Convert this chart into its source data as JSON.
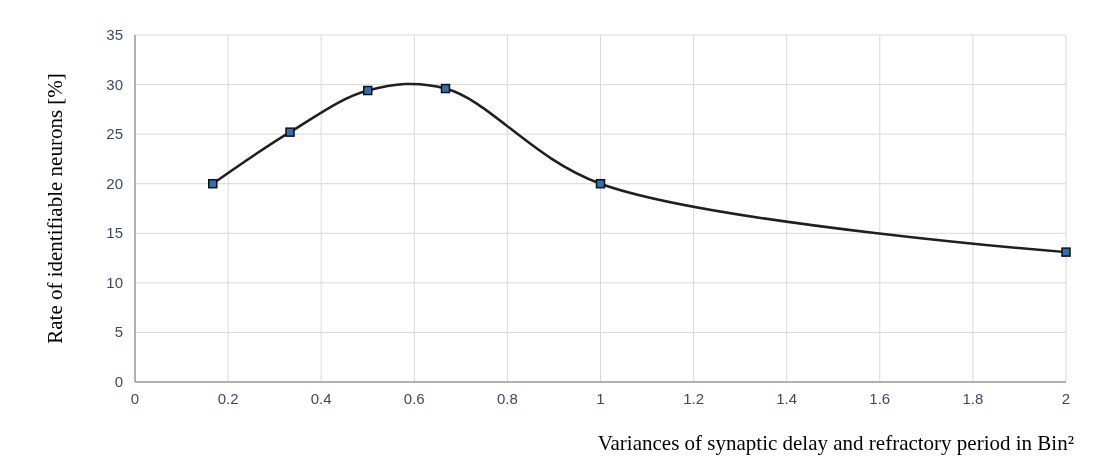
{
  "chart_data": {
    "type": "line",
    "xlabel": "Variances of synaptic delay and refractory period in Bin²",
    "ylabel": "Rate of identifiable neurons [%]",
    "x": [
      0.167,
      0.333,
      0.5,
      0.667,
      1,
      2
    ],
    "series": [
      {
        "color": "#1f1f1f",
        "values": [
          20,
          25.2,
          29.4,
          29.6,
          20,
          13.1
        ]
      }
    ],
    "xlim": [
      0,
      2
    ],
    "xticks": [
      0,
      0.2,
      0.4,
      0.6,
      0.8,
      1,
      1.2,
      1.4,
      1.6,
      1.8,
      2
    ],
    "ylim": [
      0,
      35
    ],
    "yticks": [
      0,
      5,
      10,
      15,
      20,
      25,
      30,
      35
    ],
    "grid": true,
    "marker": "square",
    "line_style": "solid"
  }
}
